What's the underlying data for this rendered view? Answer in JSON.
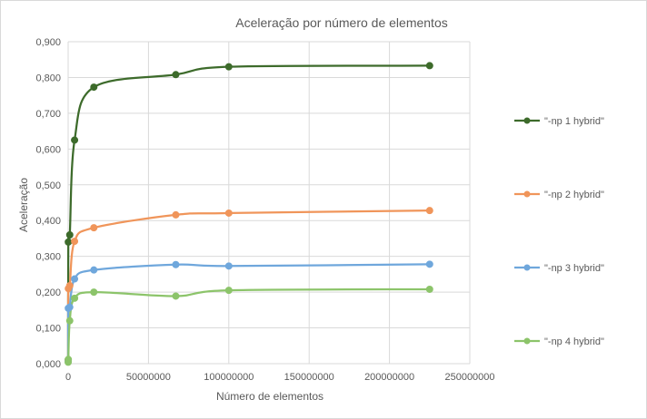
{
  "chart_data": {
    "type": "scatter",
    "title": "Aceleração por número de elementos",
    "xlabel": "Número de elementos",
    "ylabel": "Aceleração",
    "xlim": [
      0,
      250000000
    ],
    "ylim": [
      0,
      0.9
    ],
    "x_ticks": [
      0,
      50000000,
      100000000,
      150000000,
      200000000,
      250000000
    ],
    "x_tick_labels": [
      "0",
      "50000000",
      "100000000",
      "150000000",
      "200000000",
      "250000000"
    ],
    "y_ticks": [
      0,
      0.1,
      0.2,
      0.3,
      0.4,
      0.5,
      0.6,
      0.7,
      0.8,
      0.9
    ],
    "y_tick_labels": [
      "0,000",
      "0,100",
      "0,200",
      "0,300",
      "0,400",
      "0,500",
      "0,600",
      "0,700",
      "0,800",
      "0,900"
    ],
    "grid": true,
    "legend_position": "right",
    "smooth_lines": true,
    "x": [
      10000,
      100000,
      1000000,
      4000000,
      16000000,
      67000000,
      100000000,
      225000000
    ],
    "series": [
      {
        "name": "\"-np 1 hybrid\"",
        "color": "#3d6b2b",
        "values": [
          0.01,
          0.34,
          0.36,
          0.625,
          0.773,
          0.808,
          0.83,
          0.833
        ]
      },
      {
        "name": "\"-np 2 hybrid\"",
        "color": "#f0955a",
        "values": [
          0.008,
          0.21,
          0.218,
          0.342,
          0.38,
          0.416,
          0.421,
          0.428
        ]
      },
      {
        "name": "\"-np 3 hybrid\"",
        "color": "#6fa7dc",
        "values": [
          0.006,
          0.155,
          0.158,
          0.237,
          0.262,
          0.277,
          0.273,
          0.278
        ]
      },
      {
        "name": "\"-np 4 hybrid\"",
        "color": "#8cc46a",
        "values": [
          0.004,
          0.012,
          0.12,
          0.183,
          0.2,
          0.189,
          0.205,
          0.208
        ]
      }
    ]
  }
}
